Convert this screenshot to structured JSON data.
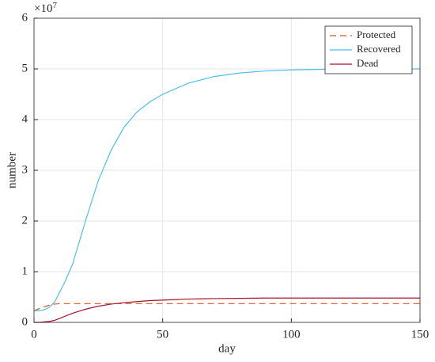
{
  "chart_data": {
    "type": "line",
    "xlabel": "day",
    "ylabel": "number",
    "y_multiplier": {
      "base": "×10",
      "exponent": "7"
    },
    "x": [
      0,
      2,
      4,
      6,
      8,
      10,
      12,
      15,
      20,
      25,
      30,
      35,
      40,
      45,
      50,
      60,
      70,
      80,
      90,
      100,
      110,
      120,
      130,
      140,
      150
    ],
    "series": [
      {
        "name": "Protected",
        "color": "#D95319",
        "dash": true,
        "values": [
          0.23,
          0.27,
          0.31,
          0.34,
          0.36,
          0.37,
          0.37,
          0.37,
          0.37,
          0.37,
          0.37,
          0.37,
          0.37,
          0.37,
          0.37,
          0.37,
          0.37,
          0.37,
          0.37,
          0.37,
          0.37,
          0.37,
          0.37,
          0.37,
          0.37
        ]
      },
      {
        "name": "Recovered",
        "color": "#4DBEEE",
        "dash": false,
        "values": [
          0.23,
          0.23,
          0.25,
          0.3,
          0.4,
          0.6,
          0.8,
          1.15,
          2.0,
          2.8,
          3.4,
          3.85,
          4.15,
          4.35,
          4.5,
          4.72,
          4.85,
          4.92,
          4.96,
          4.98,
          4.99,
          5.0,
          5.0,
          5.0,
          5.0
        ]
      },
      {
        "name": "Dead",
        "color": "#A2142F",
        "dash": false,
        "values": [
          0,
          0,
          0.01,
          0.02,
          0.04,
          0.08,
          0.12,
          0.18,
          0.26,
          0.32,
          0.36,
          0.39,
          0.41,
          0.43,
          0.44,
          0.46,
          0.47,
          0.475,
          0.48,
          0.48,
          0.48,
          0.48,
          0.48,
          0.48,
          0.48
        ]
      }
    ],
    "xlim": [
      0,
      150
    ],
    "xticks": [
      0,
      50,
      100,
      150
    ],
    "ylim": [
      0,
      6
    ],
    "yticks": [
      0,
      1,
      2,
      3,
      4,
      5,
      6
    ],
    "grid": true,
    "legend": "northeast"
  }
}
